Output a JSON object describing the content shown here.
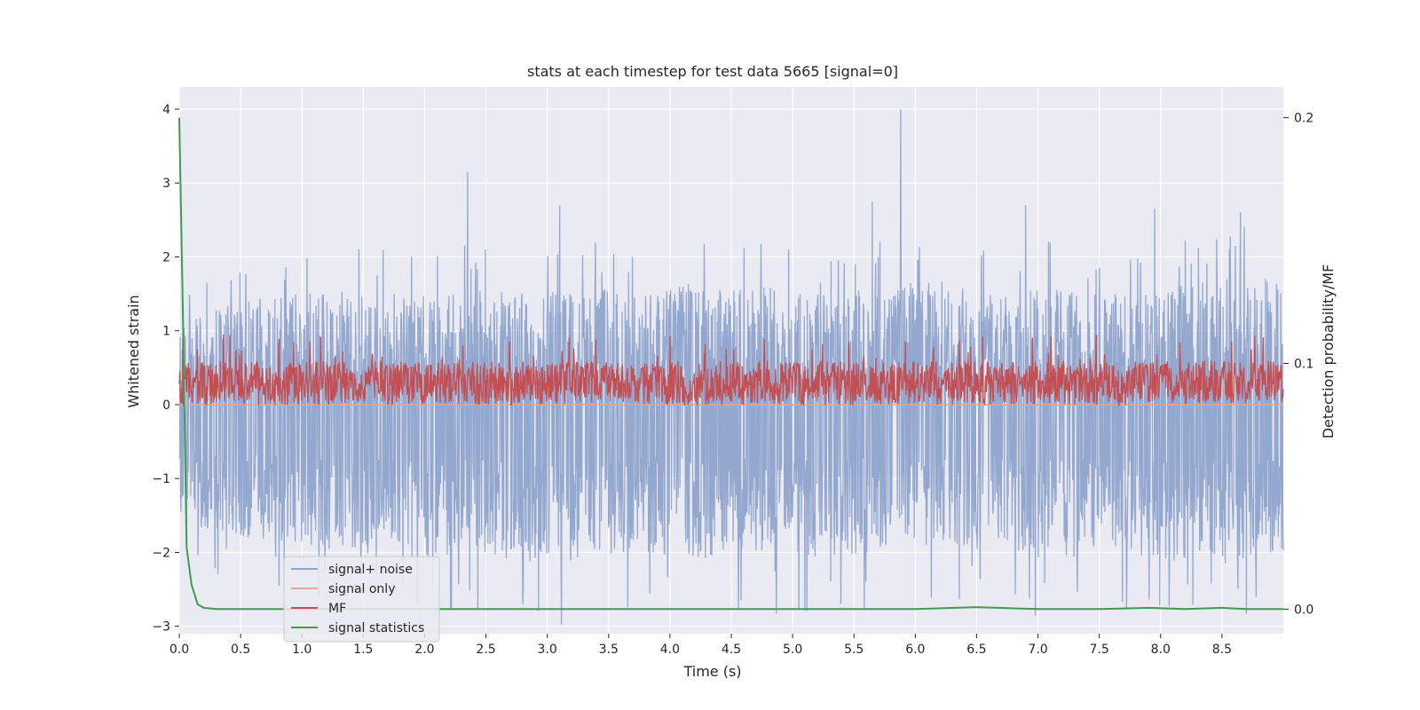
{
  "chart_data": {
    "type": "line",
    "title": "stats at each timestep for test data 5665 [signal=0]",
    "xlabel": "Time (s)",
    "ylabel_left": "Whitened strain",
    "ylabel_right": "Detection probability/MF",
    "xlim": [
      0.0,
      9.0
    ],
    "ylim_left": [
      -3.1,
      4.3
    ],
    "ylim_right": [
      -0.01,
      0.2125
    ],
    "x_ticks": [
      "0.0",
      "0.5",
      "1.0",
      "1.5",
      "2.0",
      "2.5",
      "3.0",
      "3.5",
      "4.0",
      "4.5",
      "5.0",
      "5.5",
      "6.0",
      "6.5",
      "7.0",
      "7.5",
      "8.0",
      "8.5"
    ],
    "y_ticks_left": [
      "−3",
      "−2",
      "−1",
      "0",
      "1",
      "2",
      "3",
      "4"
    ],
    "y_ticks_right": [
      "0.0",
      "0.1",
      "0.2"
    ],
    "grid": true,
    "background": "#eaeaf2",
    "legend_position": "lower-left",
    "series": [
      {
        "name": "signal+ noise",
        "color": "#8fa4cc",
        "axis": "left",
        "kind": "noise",
        "envelope_upper": [
          1.1,
          1.4,
          1.5,
          1.6,
          1.5,
          1.6,
          1.5,
          1.6,
          1.5,
          1.7,
          1.6,
          1.5,
          1.6,
          1.7,
          1.5,
          1.6,
          1.5,
          1.6,
          1.7,
          1.8
        ],
        "envelope_lower": [
          -1.6,
          -1.8,
          -1.9,
          -2.0,
          -2.1,
          -2.0,
          -2.2,
          -2.1,
          -2.0,
          -2.1,
          -2.0,
          -2.1,
          -2.0,
          -1.9,
          -2.0,
          -2.1,
          -2.0,
          -2.1,
          -2.2,
          -2.0
        ],
        "spikes": [
          [
            2.35,
            3.15
          ],
          [
            5.88,
            4.0
          ],
          [
            2.8,
            -2.7
          ],
          [
            4.58,
            -2.65
          ],
          [
            8.78,
            -2.6
          ],
          [
            3.1,
            2.7
          ],
          [
            6.9,
            2.7
          ],
          [
            7.95,
            2.65
          ],
          [
            8.65,
            2.6
          ],
          [
            5.65,
            2.75
          ],
          [
            1.48,
            -2.3
          ]
        ]
      },
      {
        "name": "signal only",
        "color": "#e8a68a",
        "axis": "left",
        "kind": "flat",
        "value": 0.0
      },
      {
        "name": "MF",
        "color": "#c44e52",
        "axis": "right",
        "kind": "band",
        "base": 0.089,
        "low": 0.083,
        "high": 0.101,
        "spike_high": 0.112
      },
      {
        "name": "signal statistics",
        "color": "#3f9c4f",
        "axis": "right",
        "x": [
          0.0,
          0.03,
          0.06,
          0.1,
          0.15,
          0.2,
          0.3,
          0.5,
          1.0,
          2.0,
          3.0,
          4.0,
          5.0,
          6.0,
          6.5,
          7.0,
          7.5,
          7.9,
          8.2,
          8.5,
          8.7,
          9.0
        ],
        "y": [
          0.2,
          0.12,
          0.025,
          0.01,
          0.002,
          0.0005,
          0.0,
          0.0,
          0.0,
          0.0,
          0.0,
          0.0,
          0.0,
          0.0,
          0.0008,
          0.0,
          0.0,
          0.0005,
          0.0,
          0.0005,
          0.0,
          0.0
        ]
      }
    ]
  }
}
